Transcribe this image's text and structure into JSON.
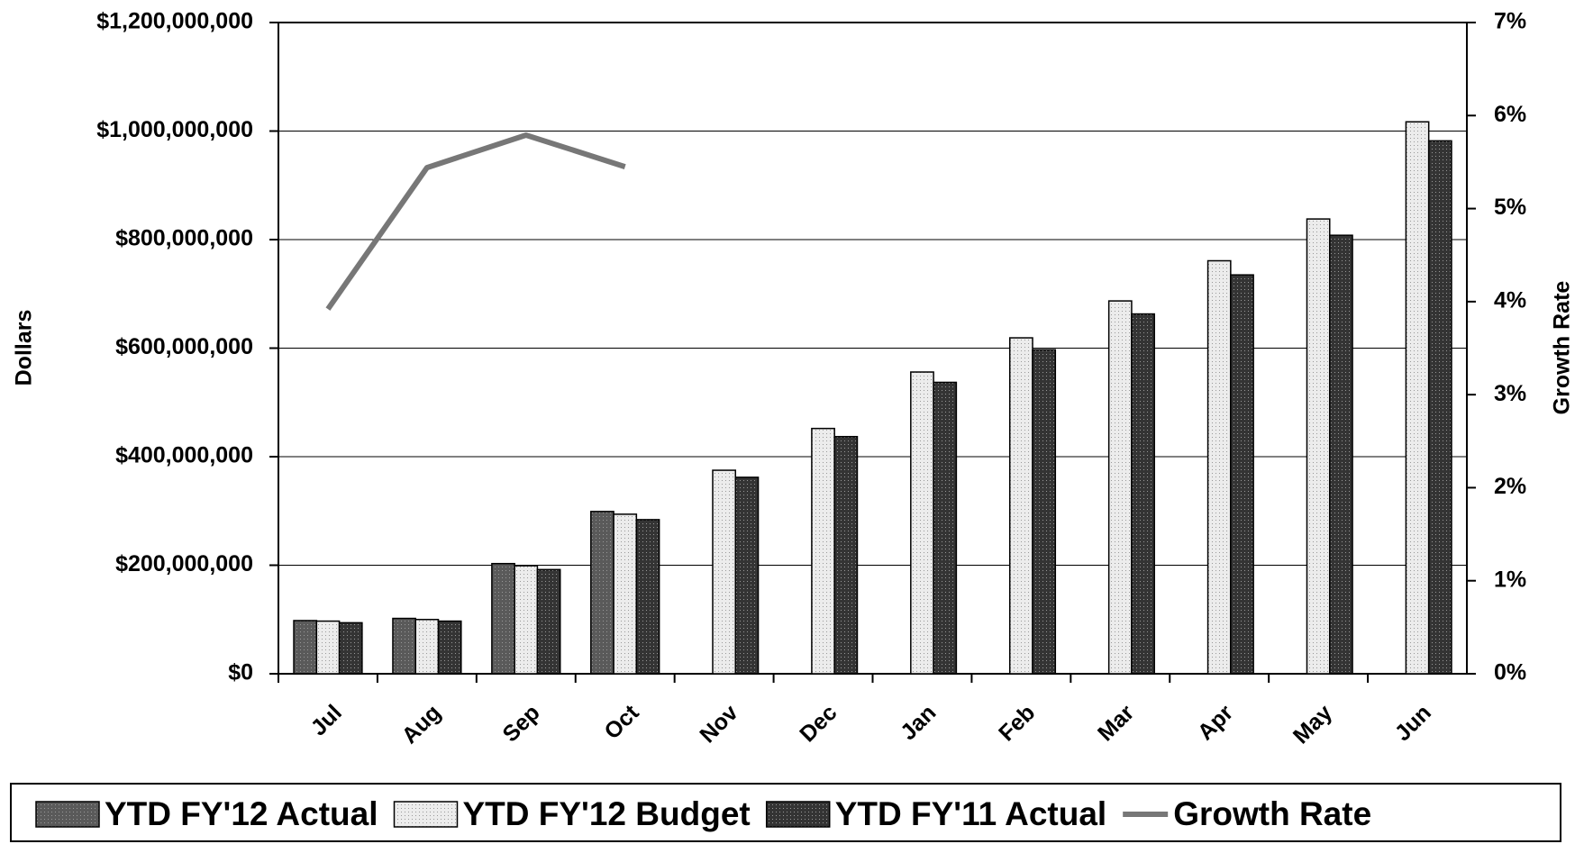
{
  "chart_data": {
    "type": "bar",
    "categories": [
      "Jul",
      "Aug",
      "Sep",
      "Oct",
      "Nov",
      "Dec",
      "Jan",
      "Feb",
      "Mar",
      "Apr",
      "May",
      "Jun"
    ],
    "series": [
      {
        "name": "YTD FY'12 Actual",
        "color": "#5a5a5a",
        "values": [
          98000000,
          102000000,
          203000000,
          299000000,
          null,
          null,
          null,
          null,
          null,
          null,
          null,
          null
        ]
      },
      {
        "name": "YTD FY'12 Budget",
        "color": "#ececec",
        "values": [
          97000000,
          100000000,
          199000000,
          294000000,
          375000000,
          452000000,
          556000000,
          619000000,
          687000000,
          761000000,
          838000000,
          1017000000
        ]
      },
      {
        "name": "YTD FY'11 Actual",
        "color": "#343434",
        "values": [
          94000000,
          97000000,
          192000000,
          284000000,
          362000000,
          437000000,
          537000000,
          597000000,
          663000000,
          735000000,
          808000000,
          982000000
        ]
      },
      {
        "name": "Growth Rate",
        "type": "line",
        "axis": "y2",
        "color": "#777777",
        "values": [
          3.92,
          5.44,
          5.79,
          5.45,
          null,
          null,
          null,
          null,
          null,
          null,
          null,
          null
        ]
      }
    ],
    "ylabel": "Dollars",
    "y2label": "Growth Rate",
    "ylim": [
      0,
      1200000000
    ],
    "yticks": [
      {
        "value": 0,
        "label": "$0"
      },
      {
        "value": 200000000,
        "label": "$200,000,000"
      },
      {
        "value": 400000000,
        "label": "$400,000,000"
      },
      {
        "value": 600000000,
        "label": "$600,000,000"
      },
      {
        "value": 800000000,
        "label": "$800,000,000"
      },
      {
        "value": 1000000000,
        "label": "$1,000,000,000"
      },
      {
        "value": 1200000000,
        "label": "$1,200,000,000"
      }
    ],
    "y2lim": [
      0,
      7
    ],
    "y2ticks": [
      {
        "value": 0,
        "label": "0%"
      },
      {
        "value": 1,
        "label": "1%"
      },
      {
        "value": 2,
        "label": "2%"
      },
      {
        "value": 3,
        "label": "3%"
      },
      {
        "value": 4,
        "label": "4%"
      },
      {
        "value": 5,
        "label": "5%"
      },
      {
        "value": 6,
        "label": "6%"
      },
      {
        "value": 7,
        "label": "7%"
      }
    ],
    "grid": true,
    "legend": "bottom"
  }
}
